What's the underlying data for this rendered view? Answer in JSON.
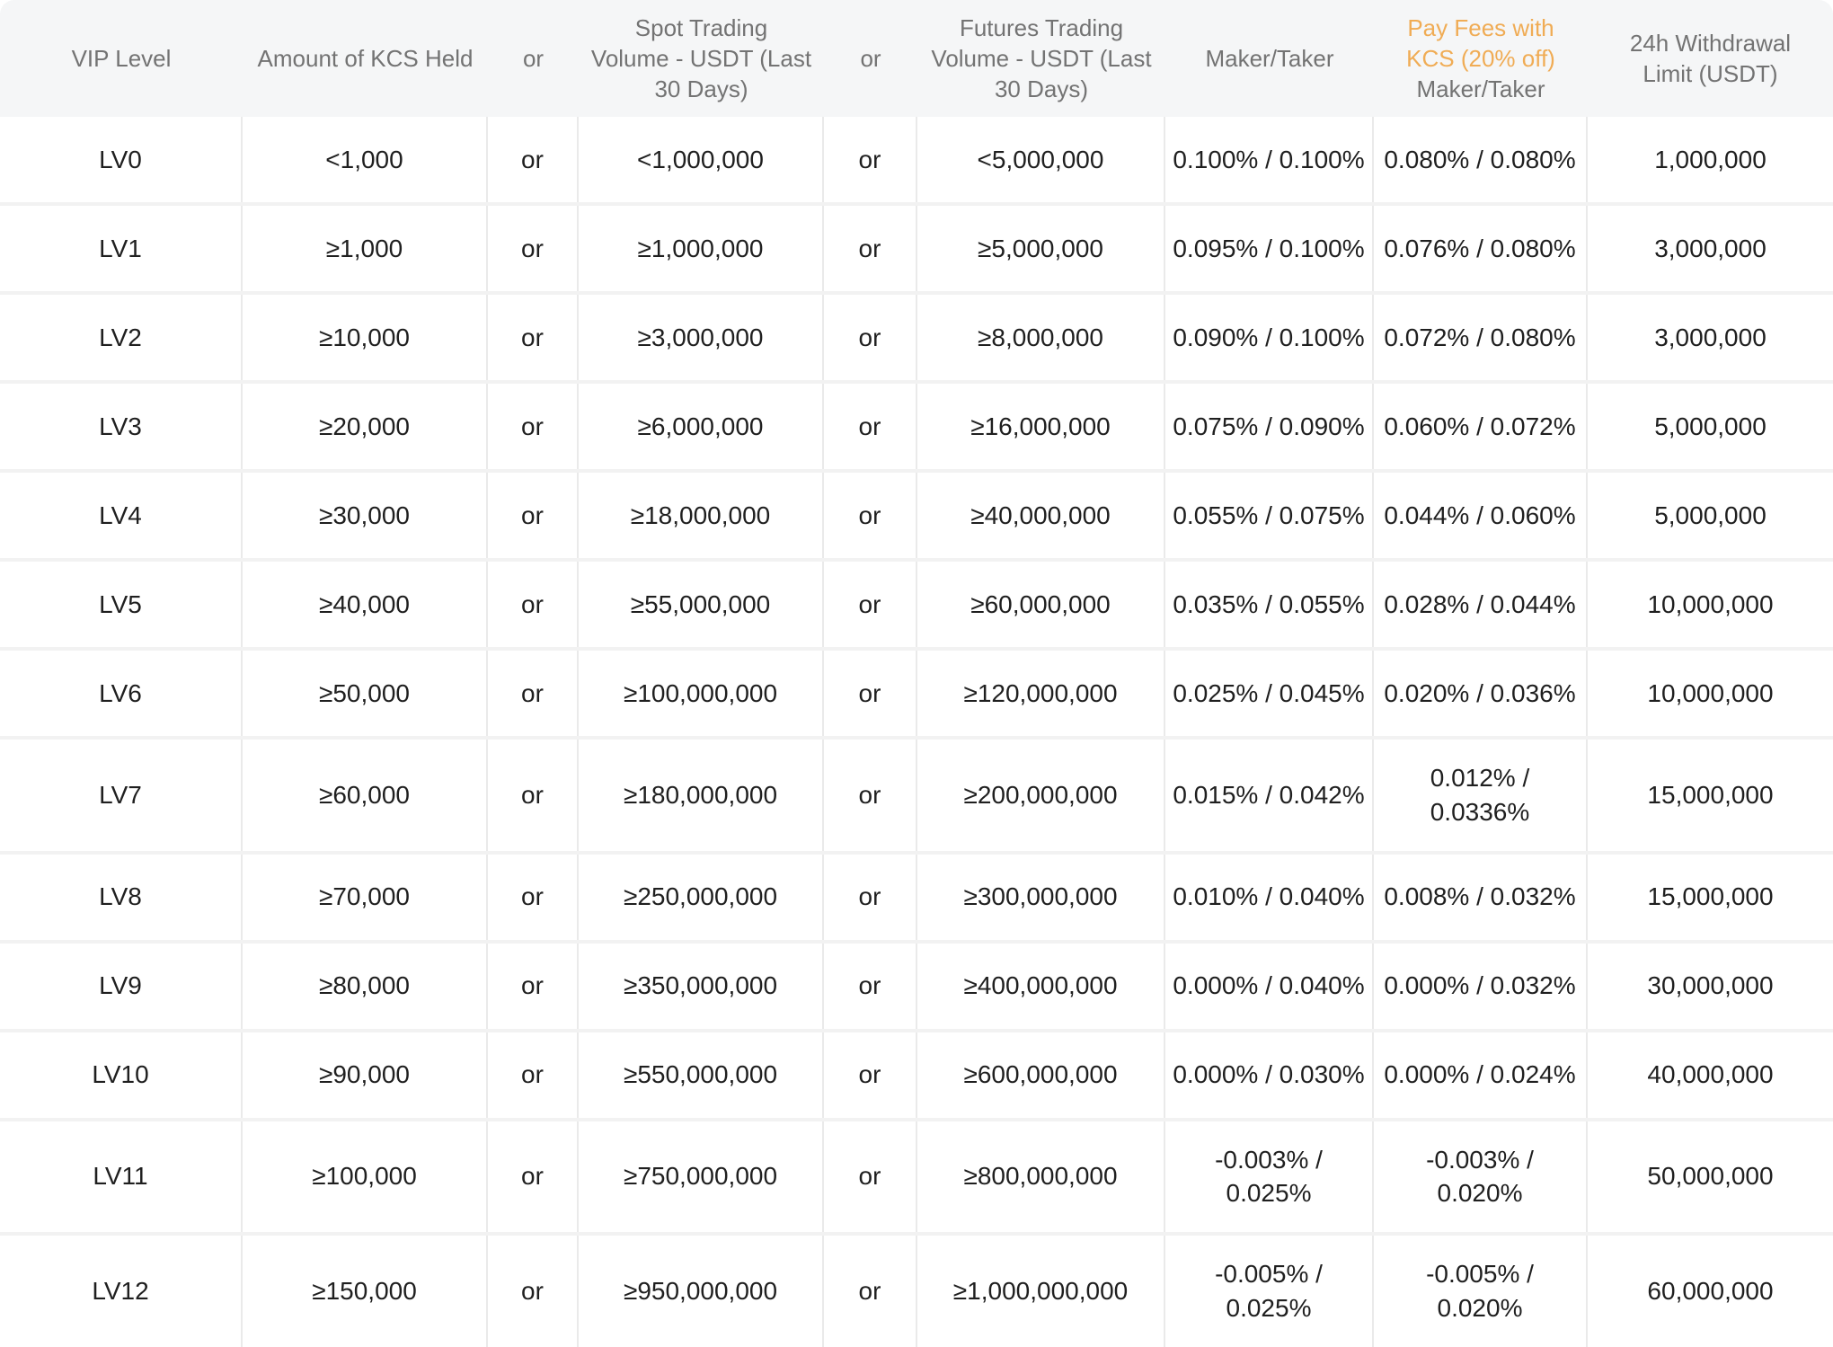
{
  "table": {
    "accent_color": "#F0AC55",
    "header_background": "#f5f6f7",
    "header": {
      "vip_level": "VIP Level",
      "kcs_held": "Amount of KCS Held",
      "or1": "or",
      "spot_volume": "Spot Trading\nVolume - USDT (Last\n30 Days)",
      "or2": "or",
      "futures_volume": "Futures Trading\nVolume - USDT (Last\n30 Days)",
      "maker_taker": "Maker/Taker",
      "kcs_fee_highlight": "Pay Fees with\nKCS (20% off)",
      "kcs_fee_sub": "Maker/Taker",
      "withdrawal_limit": "24h Withdrawal\nLimit (USDT)"
    },
    "rows": [
      {
        "level": "LV0",
        "kcs_held": "<1,000",
        "or1": "or",
        "spot": "<1,000,000",
        "or2": "or",
        "futures": "<5,000,000",
        "maker_taker": "0.100% / 0.100%",
        "kcs_fee": "0.080% / 0.080%",
        "withdrawal": "1,000,000"
      },
      {
        "level": "LV1",
        "kcs_held": "≥1,000",
        "or1": "or",
        "spot": "≥1,000,000",
        "or2": "or",
        "futures": "≥5,000,000",
        "maker_taker": "0.095% / 0.100%",
        "kcs_fee": "0.076% / 0.080%",
        "withdrawal": "3,000,000"
      },
      {
        "level": "LV2",
        "kcs_held": "≥10,000",
        "or1": "or",
        "spot": "≥3,000,000",
        "or2": "or",
        "futures": "≥8,000,000",
        "maker_taker": "0.090% / 0.100%",
        "kcs_fee": "0.072% / 0.080%",
        "withdrawal": "3,000,000"
      },
      {
        "level": "LV3",
        "kcs_held": "≥20,000",
        "or1": "or",
        "spot": "≥6,000,000",
        "or2": "or",
        "futures": "≥16,000,000",
        "maker_taker": "0.075% / 0.090%",
        "kcs_fee": "0.060% / 0.072%",
        "withdrawal": "5,000,000"
      },
      {
        "level": "LV4",
        "kcs_held": "≥30,000",
        "or1": "or",
        "spot": "≥18,000,000",
        "or2": "or",
        "futures": "≥40,000,000",
        "maker_taker": "0.055% / 0.075%",
        "kcs_fee": "0.044% / 0.060%",
        "withdrawal": "5,000,000"
      },
      {
        "level": "LV5",
        "kcs_held": "≥40,000",
        "or1": "or",
        "spot": "≥55,000,000",
        "or2": "or",
        "futures": "≥60,000,000",
        "maker_taker": "0.035% / 0.055%",
        "kcs_fee": "0.028% / 0.044%",
        "withdrawal": "10,000,000"
      },
      {
        "level": "LV6",
        "kcs_held": "≥50,000",
        "or1": "or",
        "spot": "≥100,000,000",
        "or2": "or",
        "futures": "≥120,000,000",
        "maker_taker": "0.025% / 0.045%",
        "kcs_fee": "0.020% / 0.036%",
        "withdrawal": "10,000,000"
      },
      {
        "level": "LV7",
        "kcs_held": "≥60,000",
        "or1": "or",
        "spot": "≥180,000,000",
        "or2": "or",
        "futures": "≥200,000,000",
        "maker_taker": "0.015% / 0.042%",
        "kcs_fee": "0.012% /\n0.0336%",
        "withdrawal": "15,000,000"
      },
      {
        "level": "LV8",
        "kcs_held": "≥70,000",
        "or1": "or",
        "spot": "≥250,000,000",
        "or2": "or",
        "futures": "≥300,000,000",
        "maker_taker": "0.010% / 0.040%",
        "kcs_fee": "0.008% / 0.032%",
        "withdrawal": "15,000,000"
      },
      {
        "level": "LV9",
        "kcs_held": "≥80,000",
        "or1": "or",
        "spot": "≥350,000,000",
        "or2": "or",
        "futures": "≥400,000,000",
        "maker_taker": "0.000% / 0.040%",
        "kcs_fee": "0.000% / 0.032%",
        "withdrawal": "30,000,000"
      },
      {
        "level": "LV10",
        "kcs_held": "≥90,000",
        "or1": "or",
        "spot": "≥550,000,000",
        "or2": "or",
        "futures": "≥600,000,000",
        "maker_taker": "0.000% / 0.030%",
        "kcs_fee": "0.000% / 0.024%",
        "withdrawal": "40,000,000"
      },
      {
        "level": "LV11",
        "kcs_held": "≥100,000",
        "or1": "or",
        "spot": "≥750,000,000",
        "or2": "or",
        "futures": "≥800,000,000",
        "maker_taker": "-0.003% /\n0.025%",
        "kcs_fee": "-0.003% /\n0.020%",
        "withdrawal": "50,000,000"
      },
      {
        "level": "LV12",
        "kcs_held": "≥150,000",
        "or1": "or",
        "spot": "≥950,000,000",
        "or2": "or",
        "futures": "≥1,000,000,000",
        "maker_taker": "-0.005% /\n0.025%",
        "kcs_fee": "-0.005% /\n0.020%",
        "withdrawal": "60,000,000"
      }
    ]
  }
}
